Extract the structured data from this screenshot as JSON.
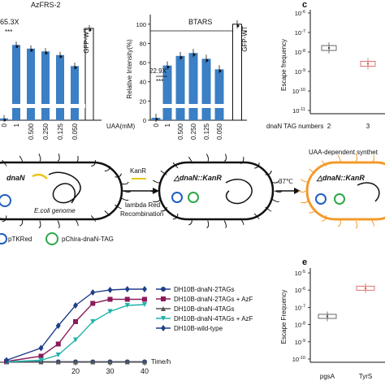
{
  "colors": {
    "bar_blue": "#3b7fc4",
    "sky_blue": "#7fb5df",
    "red": "#d9534f",
    "purple": "#8b1a5a",
    "dark_gray": "#555555",
    "teal": "#20b2aa",
    "navy": "#1f3f8a",
    "orange": "#f39a2b",
    "yellow": "#e8c71b",
    "blue_circle": "#1f5fbf",
    "green_circle": "#2ea84a"
  },
  "chart_data": [
    {
      "panel": "a",
      "type": "bar",
      "title": "AzFRS-2",
      "categories": [
        "0",
        "1",
        "0.500",
        "0.250",
        "0.125",
        "0.050",
        "GFP-WT"
      ],
      "values": [
        2,
        82,
        78,
        75,
        71,
        59,
        100
      ],
      "ylim": [
        0,
        115
      ],
      "annotation": "65.3X",
      "significance": "***"
    },
    {
      "panel": "b",
      "type": "bar",
      "title": "BTARS",
      "ylabel": "Relative Intensity(%)",
      "xlabel": "UAA(mM)",
      "categories": [
        "0",
        "1",
        "0.500",
        "0.250",
        "0.125",
        "0.050",
        "GFP-WT"
      ],
      "values": [
        2.5,
        57,
        67,
        70,
        64,
        53,
        100
      ],
      "ylim": [
        0,
        110
      ],
      "yticks": [
        "0",
        "20",
        "40",
        "60",
        "80",
        "100"
      ],
      "annotation": "22.9X",
      "significance": "***"
    },
    {
      "panel": "c",
      "type": "scatter",
      "ylabel": "Escape frequency",
      "xlabel": "dnaN TAG numbers",
      "categories": [
        "2",
        "3"
      ],
      "values": [
        1.6e-08,
        2.5e-09
      ],
      "yticks": [
        "10-6",
        "10-7",
        "10-8",
        "10-9",
        "10-10",
        "10-11"
      ]
    },
    {
      "panel": "d",
      "type": "line",
      "xlabel": "Time/h",
      "xticks": [
        "20",
        "30",
        "40"
      ],
      "series": [
        {
          "name": "DH10B-dnaN-2TAGs",
          "x": [
            0,
            10,
            15,
            20,
            25,
            30,
            35,
            40
          ],
          "y": [
            0.01,
            0.01,
            0.01,
            0.01,
            0.01,
            0.01,
            0.01,
            0.01
          ]
        },
        {
          "name": "DH10B-dnaN-2TAGs + AzF",
          "x": [
            0,
            10,
            15,
            20,
            25,
            30,
            35,
            40
          ],
          "y": [
            0.02,
            0.15,
            0.45,
            1.0,
            1.45,
            1.55,
            1.55,
            1.55
          ]
        },
        {
          "name": "DH10B-dnaN-4TAGs + AzF",
          "x": [
            0,
            10,
            15,
            20,
            25,
            30,
            35,
            40
          ],
          "y": [
            0.01,
            0.01,
            0.01,
            0.01,
            0.01,
            0.01,
            0.01,
            0.01
          ]
        },
        {
          "name": "DH10B-dnaN-4TAGs + AzF",
          "x": [
            0,
            10,
            15,
            20,
            25,
            30,
            35,
            40
          ],
          "y": [
            0.01,
            0.05,
            0.18,
            0.55,
            1.0,
            1.25,
            1.4,
            1.42
          ]
        },
        {
          "name": "DH10B-wild-type",
          "x": [
            0,
            10,
            15,
            20,
            25,
            30,
            35,
            40
          ],
          "y": [
            0.05,
            0.35,
            0.9,
            1.4,
            1.72,
            1.78,
            1.8,
            1.8
          ]
        }
      ]
    },
    {
      "panel": "e",
      "type": "scatter",
      "ylabel": "Escape Frequency",
      "categories": [
        "pgsA",
        "TyrS"
      ],
      "values": [
        3e-08,
        1.3e-06
      ],
      "yticks": [
        "10-5",
        "10-6",
        "10-7",
        "10-8",
        "10-9",
        "10-10"
      ]
    }
  ],
  "labels": {
    "panel_c": "c",
    "panel_e": "e",
    "a_fold": "65.3X",
    "a_title": "AzFRS-2",
    "a_gfp": "GFP-WT",
    "b_fold": "22.9X",
    "b_title": "BTARS",
    "b_gfp": "GFP-WT",
    "b_ylabel": "Relative Intensity(%)",
    "uaa": "UAA(mM)",
    "sig": "***",
    "c_ylabel": "Escape frequency",
    "c_xlabel": "dnaN TAG numbers",
    "e_ylabel": "Escape Frequency",
    "time": "Time/h",
    "diagram_dnaN": "dnaN",
    "diagram_genome": "E.coli genome",
    "diagram_kanr": "KanR",
    "diagram_lambda": "lambda Red",
    "diagram_recomb": "Recombination",
    "diagram_delta": "△dnaN::KanR",
    "diagram_37": "37℃",
    "diagram_uaa_dep": "UAA-dependent synthet",
    "legend_ptkred": "pTKRed",
    "legend_pchira": "pChira-dnaN-TAG"
  }
}
